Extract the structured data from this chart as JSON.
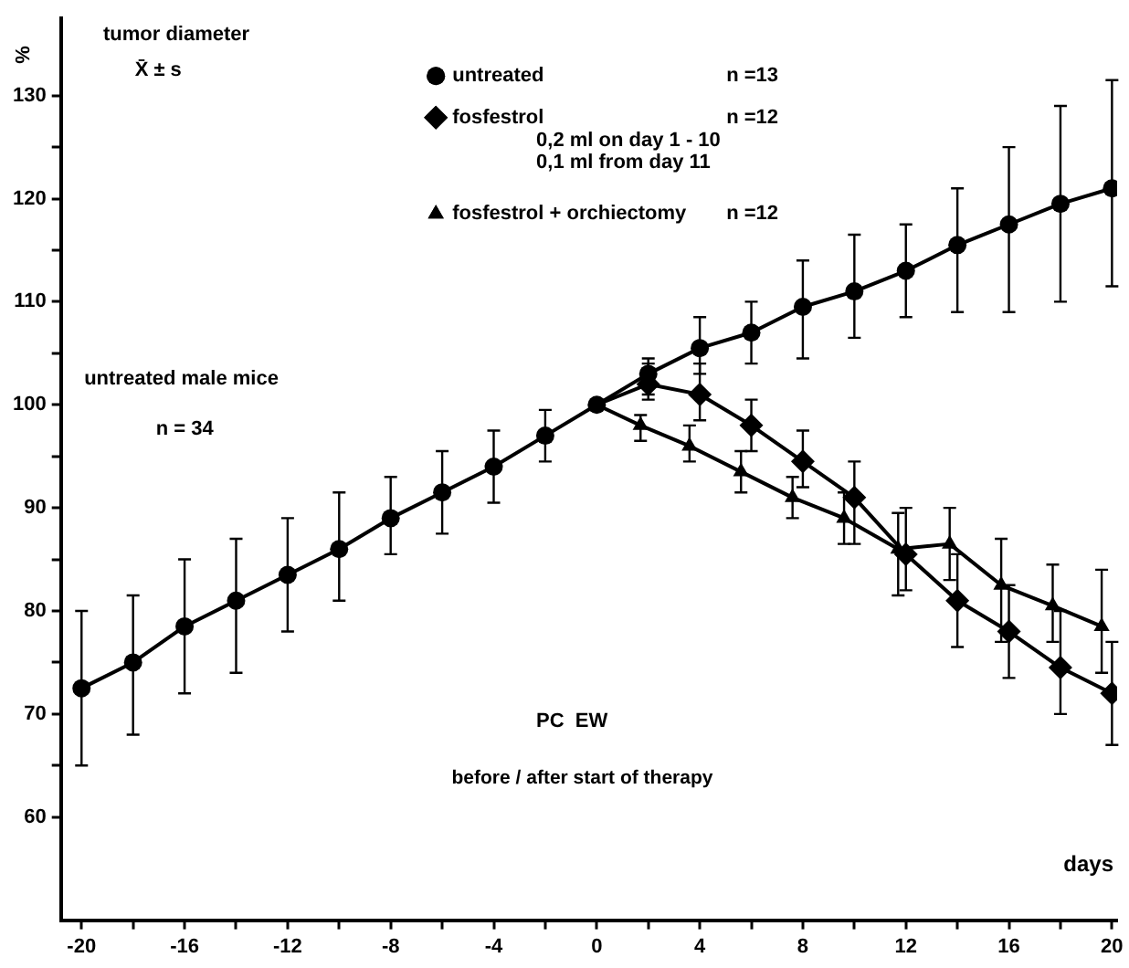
{
  "chart_data": {
    "type": "line",
    "xlabel": "days",
    "ylabel": "%",
    "annotations": [
      "tumor diameter",
      "X̄ ± s",
      "untreated male mice",
      "n = 34",
      "PC  EW",
      "before / after start of therapy",
      "n =13",
      "n =12",
      "0,2 ml on day 1 - 10",
      "0,1 ml from day 11",
      "n =12"
    ],
    "xlim": [
      -20.8,
      20.2
    ],
    "ylim": [
      50,
      137.5
    ],
    "xticks": [
      -20,
      {
        "value": -18,
        "label": null
      },
      -16,
      {
        "value": -14,
        "label": null
      },
      -12,
      {
        "value": -10,
        "label": null
      },
      -8,
      {
        "value": -6,
        "label": null
      },
      -4,
      {
        "value": -2,
        "label": null
      },
      0,
      {
        "value": 2,
        "label": null
      },
      4,
      {
        "value": 6,
        "label": null
      },
      8,
      {
        "value": 10,
        "label": null
      },
      12,
      {
        "value": 14,
        "label": null
      },
      16,
      {
        "value": 18,
        "label": null
      },
      20
    ],
    "yticks": [
      60,
      {
        "value": 65,
        "label": null
      },
      70,
      {
        "value": 75,
        "label": null
      },
      80,
      {
        "value": 85,
        "label": null
      },
      90,
      {
        "value": 95,
        "label": null
      },
      100,
      {
        "value": 105,
        "label": null
      },
      110,
      {
        "value": 115,
        "label": null
      },
      120,
      {
        "value": 125,
        "label": null
      },
      130
    ],
    "grid": false,
    "legend": "top",
    "series": [
      {
        "name": "untreated",
        "color": "#000000",
        "marker": "circle",
        "x": [
          -20,
          -18,
          -16,
          -14,
          -12,
          -10,
          -8,
          -6,
          -4,
          -2,
          0,
          2,
          4,
          6,
          8,
          10,
          12,
          14,
          16,
          18,
          20
        ],
        "values": [
          72.5,
          75,
          78.5,
          81,
          83.5,
          86,
          89,
          91.5,
          94,
          97,
          100,
          103,
          105.5,
          107,
          109.5,
          111,
          113,
          115.5,
          117.5,
          119.5,
          121
        ],
        "errors": [
          [
            65,
            80
          ],
          [
            68,
            81.5
          ],
          [
            72,
            85
          ],
          [
            74,
            87
          ],
          [
            78,
            89
          ],
          [
            81,
            91.5
          ],
          [
            85.5,
            93
          ],
          [
            87.5,
            95.5
          ],
          [
            90.5,
            97.5
          ],
          [
            94.5,
            99.5
          ],
          null,
          [
            101,
            104.5
          ],
          [
            103,
            108.5
          ],
          [
            104,
            110
          ],
          [
            104.5,
            114
          ],
          [
            106.5,
            116.5
          ],
          [
            108.5,
            117.5
          ],
          [
            109,
            121
          ],
          [
            109,
            125
          ],
          [
            110,
            129
          ],
          [
            111.5,
            131.5
          ]
        ]
      },
      {
        "name": "fosfestrol",
        "color": "#000000",
        "marker": "diamond",
        "x": [
          0,
          2,
          4,
          6,
          8,
          10,
          12,
          14,
          16,
          18,
          20
        ],
        "values": [
          100,
          102,
          101,
          98,
          94.5,
          91,
          85.5,
          81,
          78,
          74.5,
          72
        ],
        "errors": [
          null,
          [
            100.5,
            104
          ],
          [
            98.5,
            104
          ],
          [
            95.5,
            100.5
          ],
          [
            92,
            97.5
          ],
          [
            86.5,
            94.5
          ],
          [
            82,
            90
          ],
          [
            76.5,
            85.5
          ],
          [
            73.5,
            82.5
          ],
          [
            70,
            80
          ],
          [
            67,
            77
          ]
        ]
      },
      {
        "name": "fosfestrol + orchiectomy",
        "color": "#000000",
        "marker": "triangle",
        "x": [
          0,
          1.7,
          3.6,
          5.6,
          7.6,
          9.6,
          11.7,
          13.7,
          15.7,
          17.7,
          19.6
        ],
        "values": [
          100,
          98,
          96,
          93.5,
          91,
          89,
          86,
          86.5,
          82.5,
          80.5,
          78.5
        ],
        "errors": [
          null,
          [
            96.5,
            99
          ],
          [
            94.5,
            98
          ],
          [
            91.5,
            95.5
          ],
          [
            89,
            93
          ],
          [
            86.5,
            91.5
          ],
          [
            81.5,
            89.5
          ],
          [
            83,
            90
          ],
          [
            77,
            87
          ],
          [
            77,
            84.5
          ],
          [
            74,
            84
          ]
        ]
      }
    ]
  }
}
